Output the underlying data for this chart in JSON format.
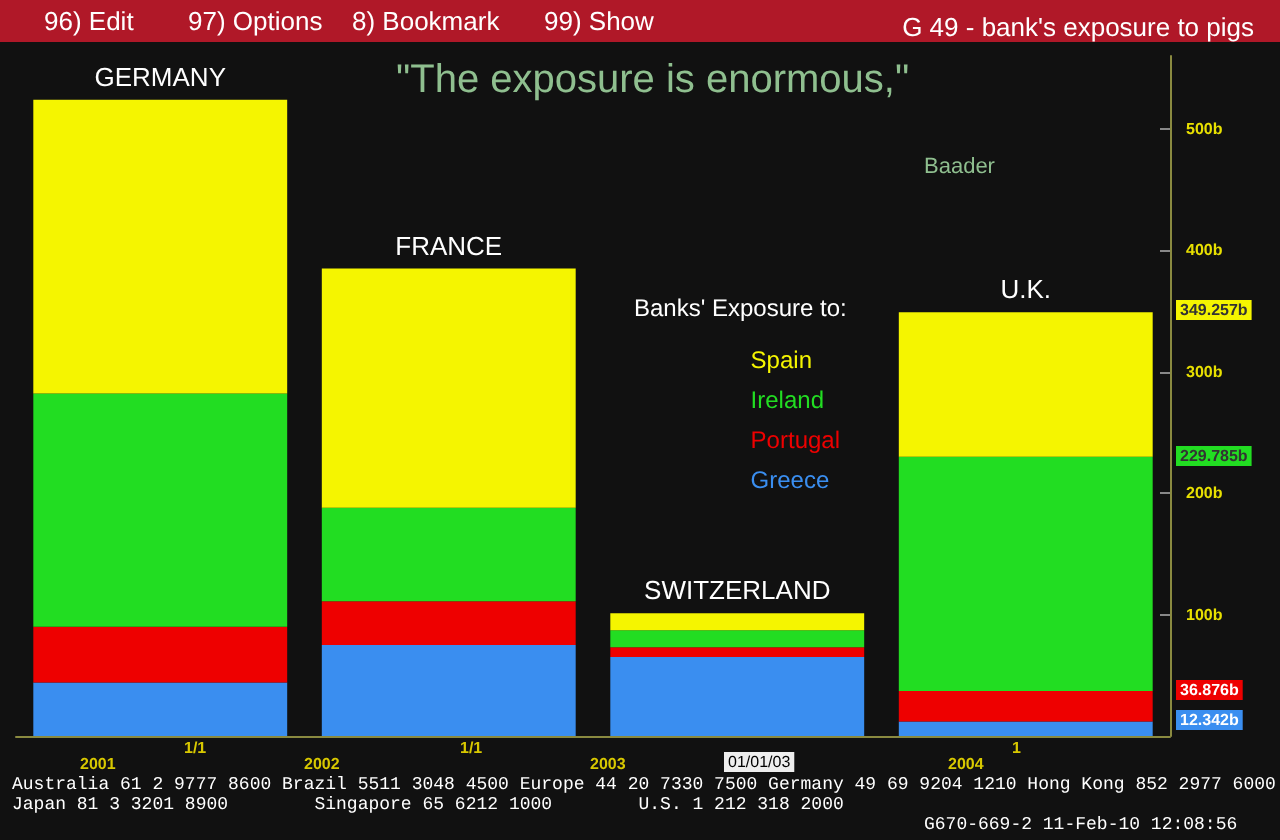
{
  "chart_data": {
    "type": "bar",
    "stacked": true,
    "title": "G 49 - bank's exposure to pigs",
    "categories": [
      "GERMANY",
      "FRANCE",
      "SWITZERLAND",
      "U.K."
    ],
    "series": [
      {
        "name": "Greece",
        "color": "#3a8ef0",
        "values": [
          44,
          75,
          65,
          12
        ]
      },
      {
        "name": "Portugal",
        "color": "#ee0000",
        "values": [
          46,
          36,
          8,
          25
        ]
      },
      {
        "name": "Ireland",
        "color": "#22dd22",
        "values": [
          192,
          77,
          14,
          193
        ]
      },
      {
        "name": "Spain",
        "color": "#f5f500",
        "values": [
          242,
          197,
          14,
          119
        ]
      }
    ],
    "legend_title": "Banks' Exposure to:",
    "legend": "right",
    "ylim": [
      0,
      560
    ],
    "yticks": [
      {
        "value": 100,
        "label": "100b"
      },
      {
        "value": 200,
        "label": "200b"
      },
      {
        "value": 300,
        "label": "300b"
      },
      {
        "value": 400,
        "label": "400b"
      },
      {
        "value": 500,
        "label": "500b"
      }
    ],
    "annotations": [
      "349.257b",
      "229.785b",
      "36.876b",
      "12.342b",
      "\"The exposure is enormous,\"",
      "Baader",
      "96) Edit",
      "97) Options",
      "8) Bookmark",
      "99) Show",
      "2001",
      "1/1",
      "2002",
      "1/1",
      "2003",
      "01/01/03",
      "2004",
      "1",
      "Australia 61 2 9777 8600 Brazil 5511 3048 4500 Europe 44 20 7330 7500 Germany 49 69 9204 1210 Hong Kong 852 2977 6000",
      "Japan 81 3 3201 8900        Singapore 65 6212 1000        U.S. 1 212 318 2000",
      "G670-669-2 11-Feb-10 12:08:56"
    ]
  }
}
